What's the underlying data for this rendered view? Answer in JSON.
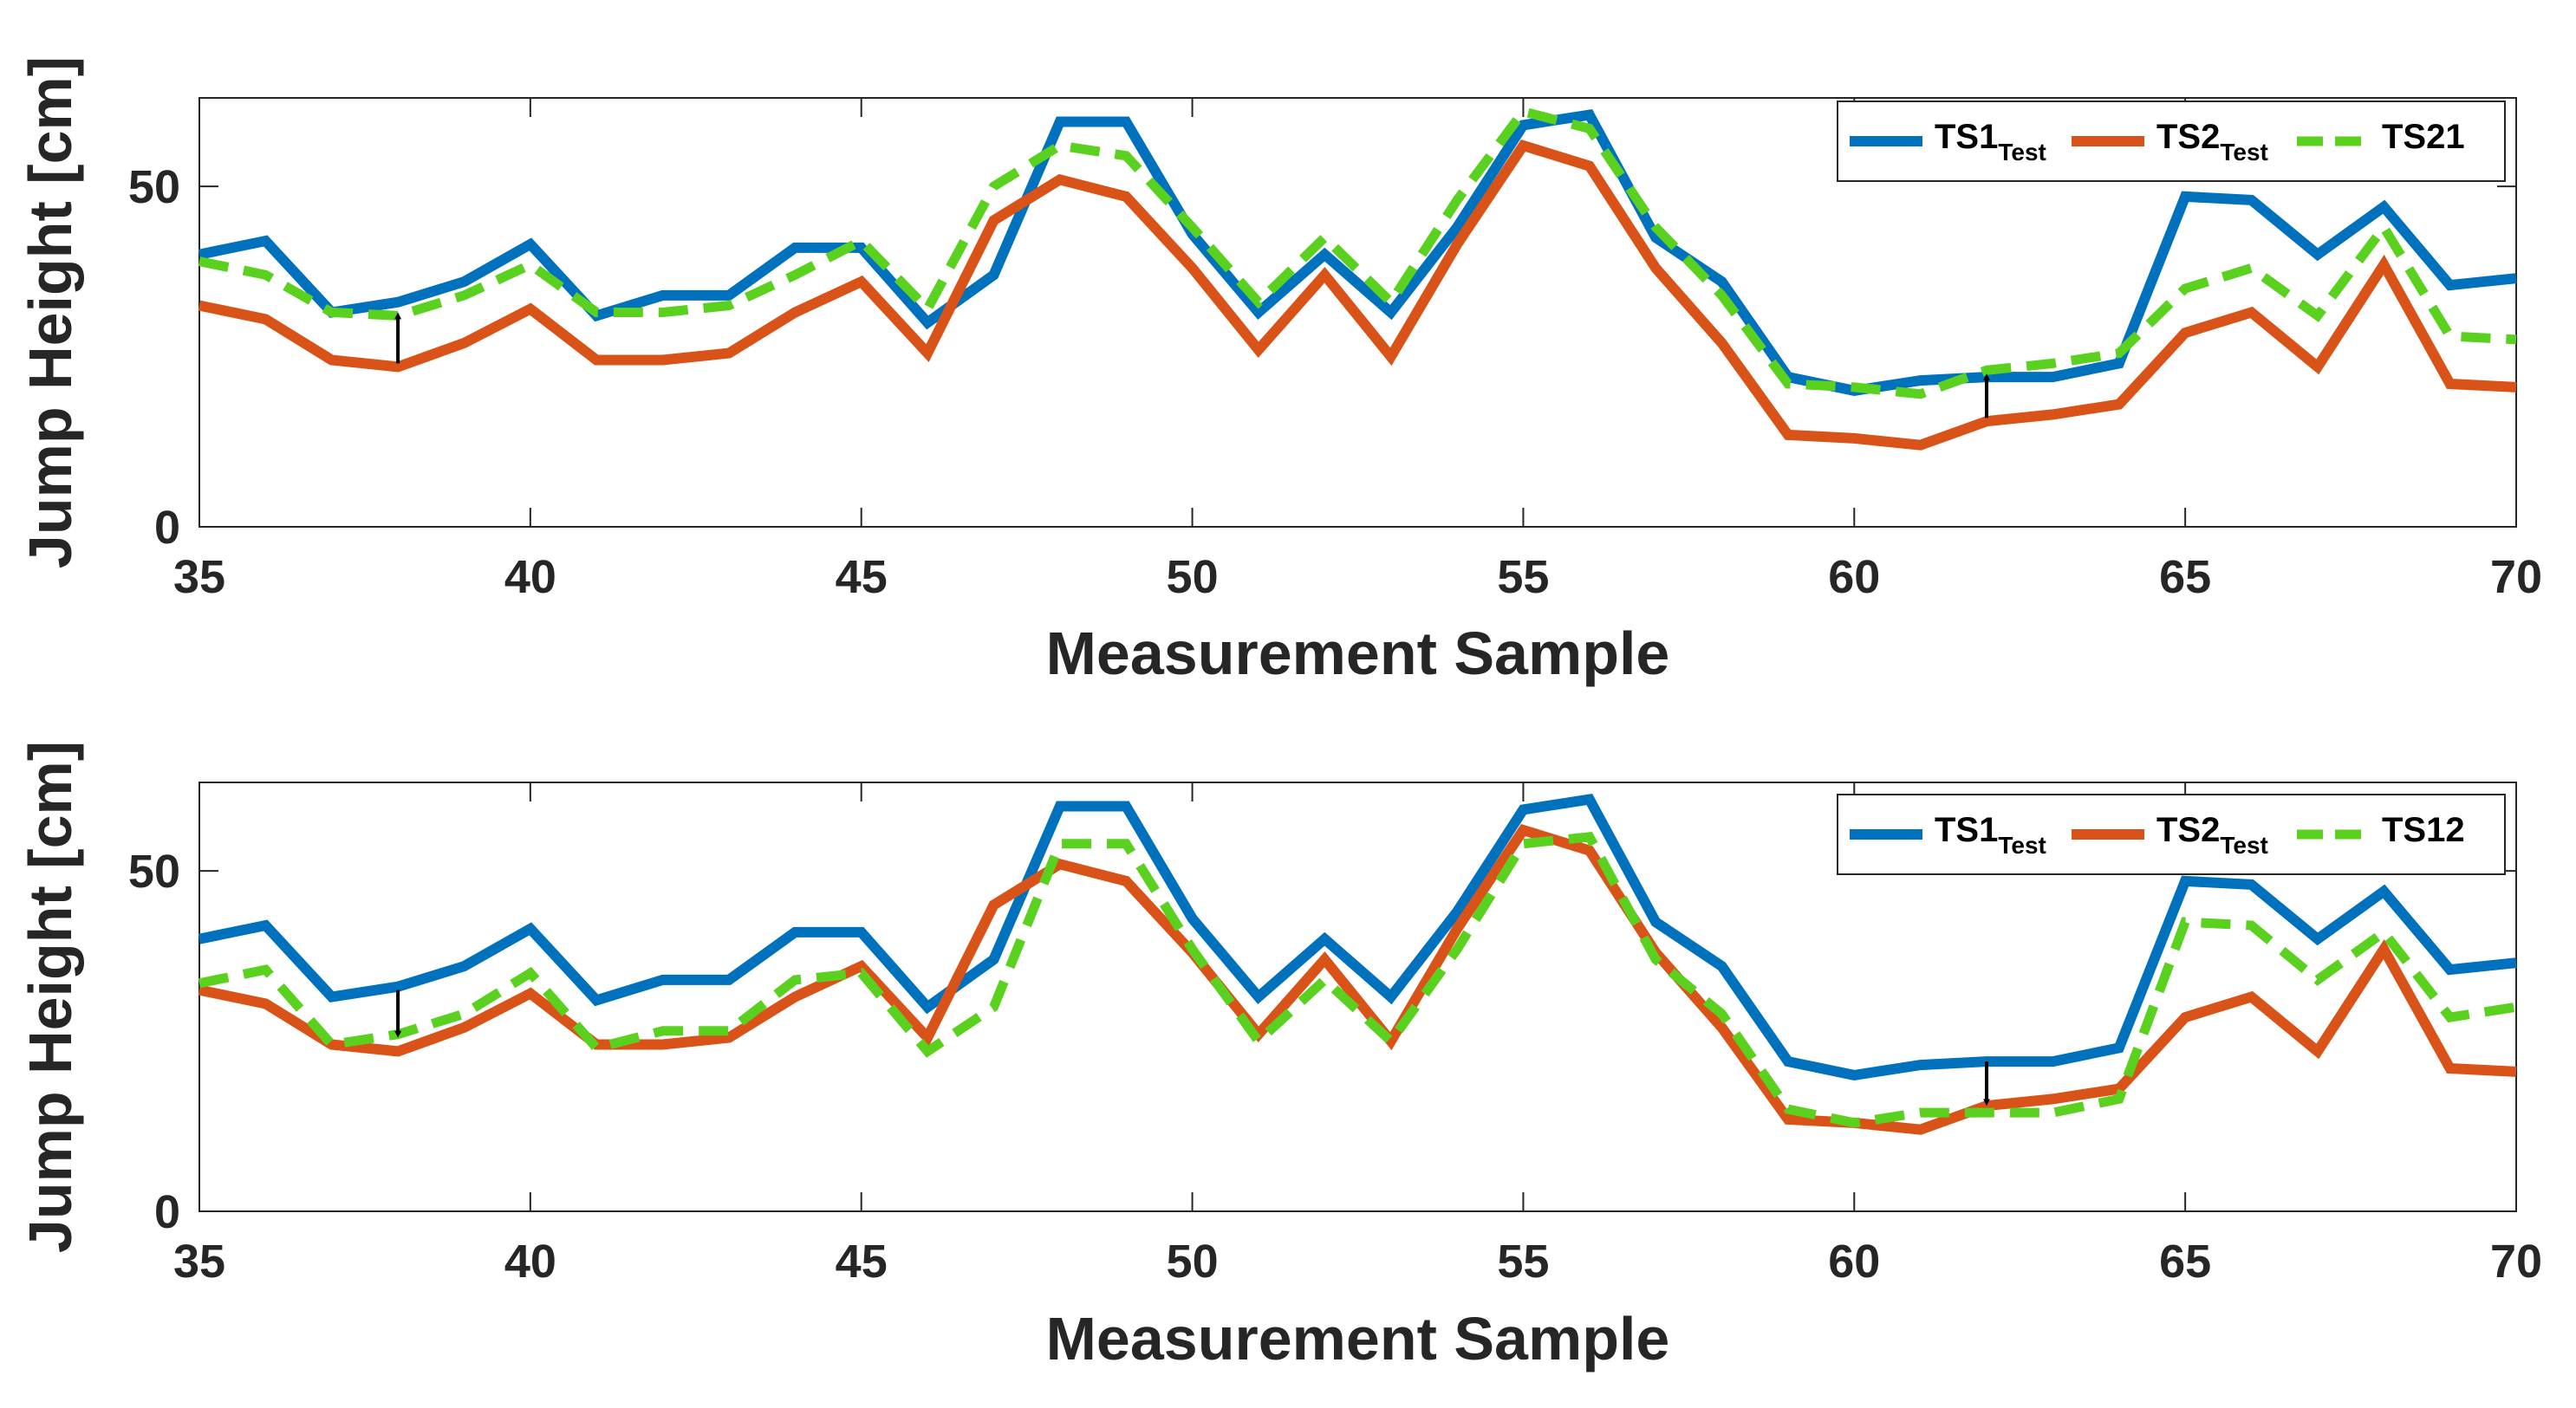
{
  "colors": {
    "ts1": "#0072BD",
    "ts2": "#D95319",
    "ts_mix": "#5BD11F",
    "axis": "#262626",
    "arrow": "#000000"
  },
  "chart_data": [
    {
      "type": "line",
      "xlabel": "Measurement Sample",
      "ylabel": "Jump Height [cm]",
      "xlim": [
        35,
        70
      ],
      "ylim": [
        0,
        63
      ],
      "xticks": [
        "35",
        "40",
        "45",
        "50",
        "55",
        "60",
        "65",
        "70"
      ],
      "yticks": [
        "0",
        "50"
      ],
      "x": [
        35,
        36,
        37,
        38,
        39,
        40,
        41,
        42,
        43,
        44,
        45,
        46,
        47,
        48,
        49,
        50,
        51,
        52,
        53,
        54,
        55,
        56,
        57,
        58,
        59,
        60,
        61,
        62,
        63,
        64,
        65,
        66,
        67,
        68,
        69,
        70
      ],
      "series": [
        {
          "name": "TS1",
          "sub": "Test",
          "style": "solid",
          "color_key": "ts1",
          "values": [
            40,
            42,
            31.5,
            33,
            36,
            41.5,
            31,
            34,
            34,
            41,
            41,
            30,
            37,
            59.5,
            59.5,
            43,
            31.5,
            40,
            31.5,
            44,
            59,
            60.5,
            42.5,
            36,
            22,
            20,
            21.5,
            22,
            22,
            24,
            48.5,
            48,
            40,
            47,
            35.5,
            36.5
          ]
        },
        {
          "name": "TS2",
          "sub": "Test",
          "style": "solid",
          "color_key": "ts2",
          "values": [
            32.5,
            30.5,
            24.5,
            23.5,
            27,
            32,
            24.5,
            24.5,
            25.5,
            31.5,
            36,
            25.5,
            45,
            51,
            48.5,
            38,
            26,
            37,
            25,
            41.5,
            56,
            53,
            38,
            27,
            13.5,
            13,
            12,
            15.5,
            16.5,
            18,
            28.5,
            31.5,
            23.5,
            38.5,
            21,
            20.5
          ]
        },
        {
          "name": "TS21",
          "sub": "",
          "style": "dashed",
          "color_key": "ts_mix",
          "values": [
            39,
            37,
            31.5,
            31,
            34,
            38.5,
            31.5,
            31.5,
            32.5,
            37,
            42,
            32,
            50,
            56,
            54.5,
            44,
            33,
            42.5,
            33,
            48,
            61,
            58.5,
            44,
            34,
            21,
            20.5,
            19.5,
            23,
            24,
            25.5,
            35,
            38,
            31,
            44,
            28,
            27.5
          ]
        }
      ],
      "arrows": [
        {
          "x": 38,
          "from": 24,
          "to": 31,
          "direction": "up"
        },
        {
          "x": 62,
          "from": 16,
          "to": 22,
          "direction": "up"
        }
      ]
    },
    {
      "type": "line",
      "xlabel": "Measurement Sample",
      "ylabel": "Jump Height [cm]",
      "xlim": [
        35,
        70
      ],
      "ylim": [
        0,
        63
      ],
      "xticks": [
        "35",
        "40",
        "45",
        "50",
        "55",
        "60",
        "65",
        "70"
      ],
      "yticks": [
        "0",
        "50"
      ],
      "x": [
        35,
        36,
        37,
        38,
        39,
        40,
        41,
        42,
        43,
        44,
        45,
        46,
        47,
        48,
        49,
        50,
        51,
        52,
        53,
        54,
        55,
        56,
        57,
        58,
        59,
        60,
        61,
        62,
        63,
        64,
        65,
        66,
        67,
        68,
        69,
        70
      ],
      "series": [
        {
          "name": "TS1",
          "sub": "Test",
          "style": "solid",
          "color_key": "ts1",
          "values": [
            40,
            42,
            31.5,
            33,
            36,
            41.5,
            31,
            34,
            34,
            41,
            41,
            30,
            37,
            59.5,
            59.5,
            43,
            31.5,
            40,
            31.5,
            44,
            59,
            60.5,
            42.5,
            36,
            22,
            20,
            21.5,
            22,
            22,
            24,
            48.5,
            48,
            40,
            47,
            35.5,
            36.5
          ]
        },
        {
          "name": "TS2",
          "sub": "Test",
          "style": "solid",
          "color_key": "ts2",
          "values": [
            32.5,
            30.5,
            24.5,
            23.5,
            27,
            32,
            24.5,
            24.5,
            25.5,
            31.5,
            36,
            25.5,
            45,
            51,
            48.5,
            38,
            26,
            37,
            25,
            41.5,
            56,
            53,
            38,
            27,
            13.5,
            13,
            12,
            15.5,
            16.5,
            18,
            28.5,
            31.5,
            23.5,
            38.5,
            21,
            20.5
          ]
        },
        {
          "name": "TS12",
          "sub": "",
          "style": "dashed",
          "color_key": "ts_mix",
          "values": [
            33.5,
            35.5,
            24.5,
            26,
            29,
            35,
            24,
            26.5,
            26.5,
            34,
            35,
            23.5,
            30,
            54,
            54,
            38.5,
            25,
            34,
            25,
            38.5,
            54,
            55,
            37,
            29,
            15,
            13,
            14.5,
            14.5,
            14.5,
            16.5,
            42.5,
            42,
            34,
            41,
            28.5,
            30
          ]
        }
      ],
      "arrows": [
        {
          "x": 38,
          "from": 32.5,
          "to": 26,
          "direction": "down"
        },
        {
          "x": 62,
          "from": 22,
          "to": 16,
          "direction": "down"
        }
      ]
    }
  ]
}
